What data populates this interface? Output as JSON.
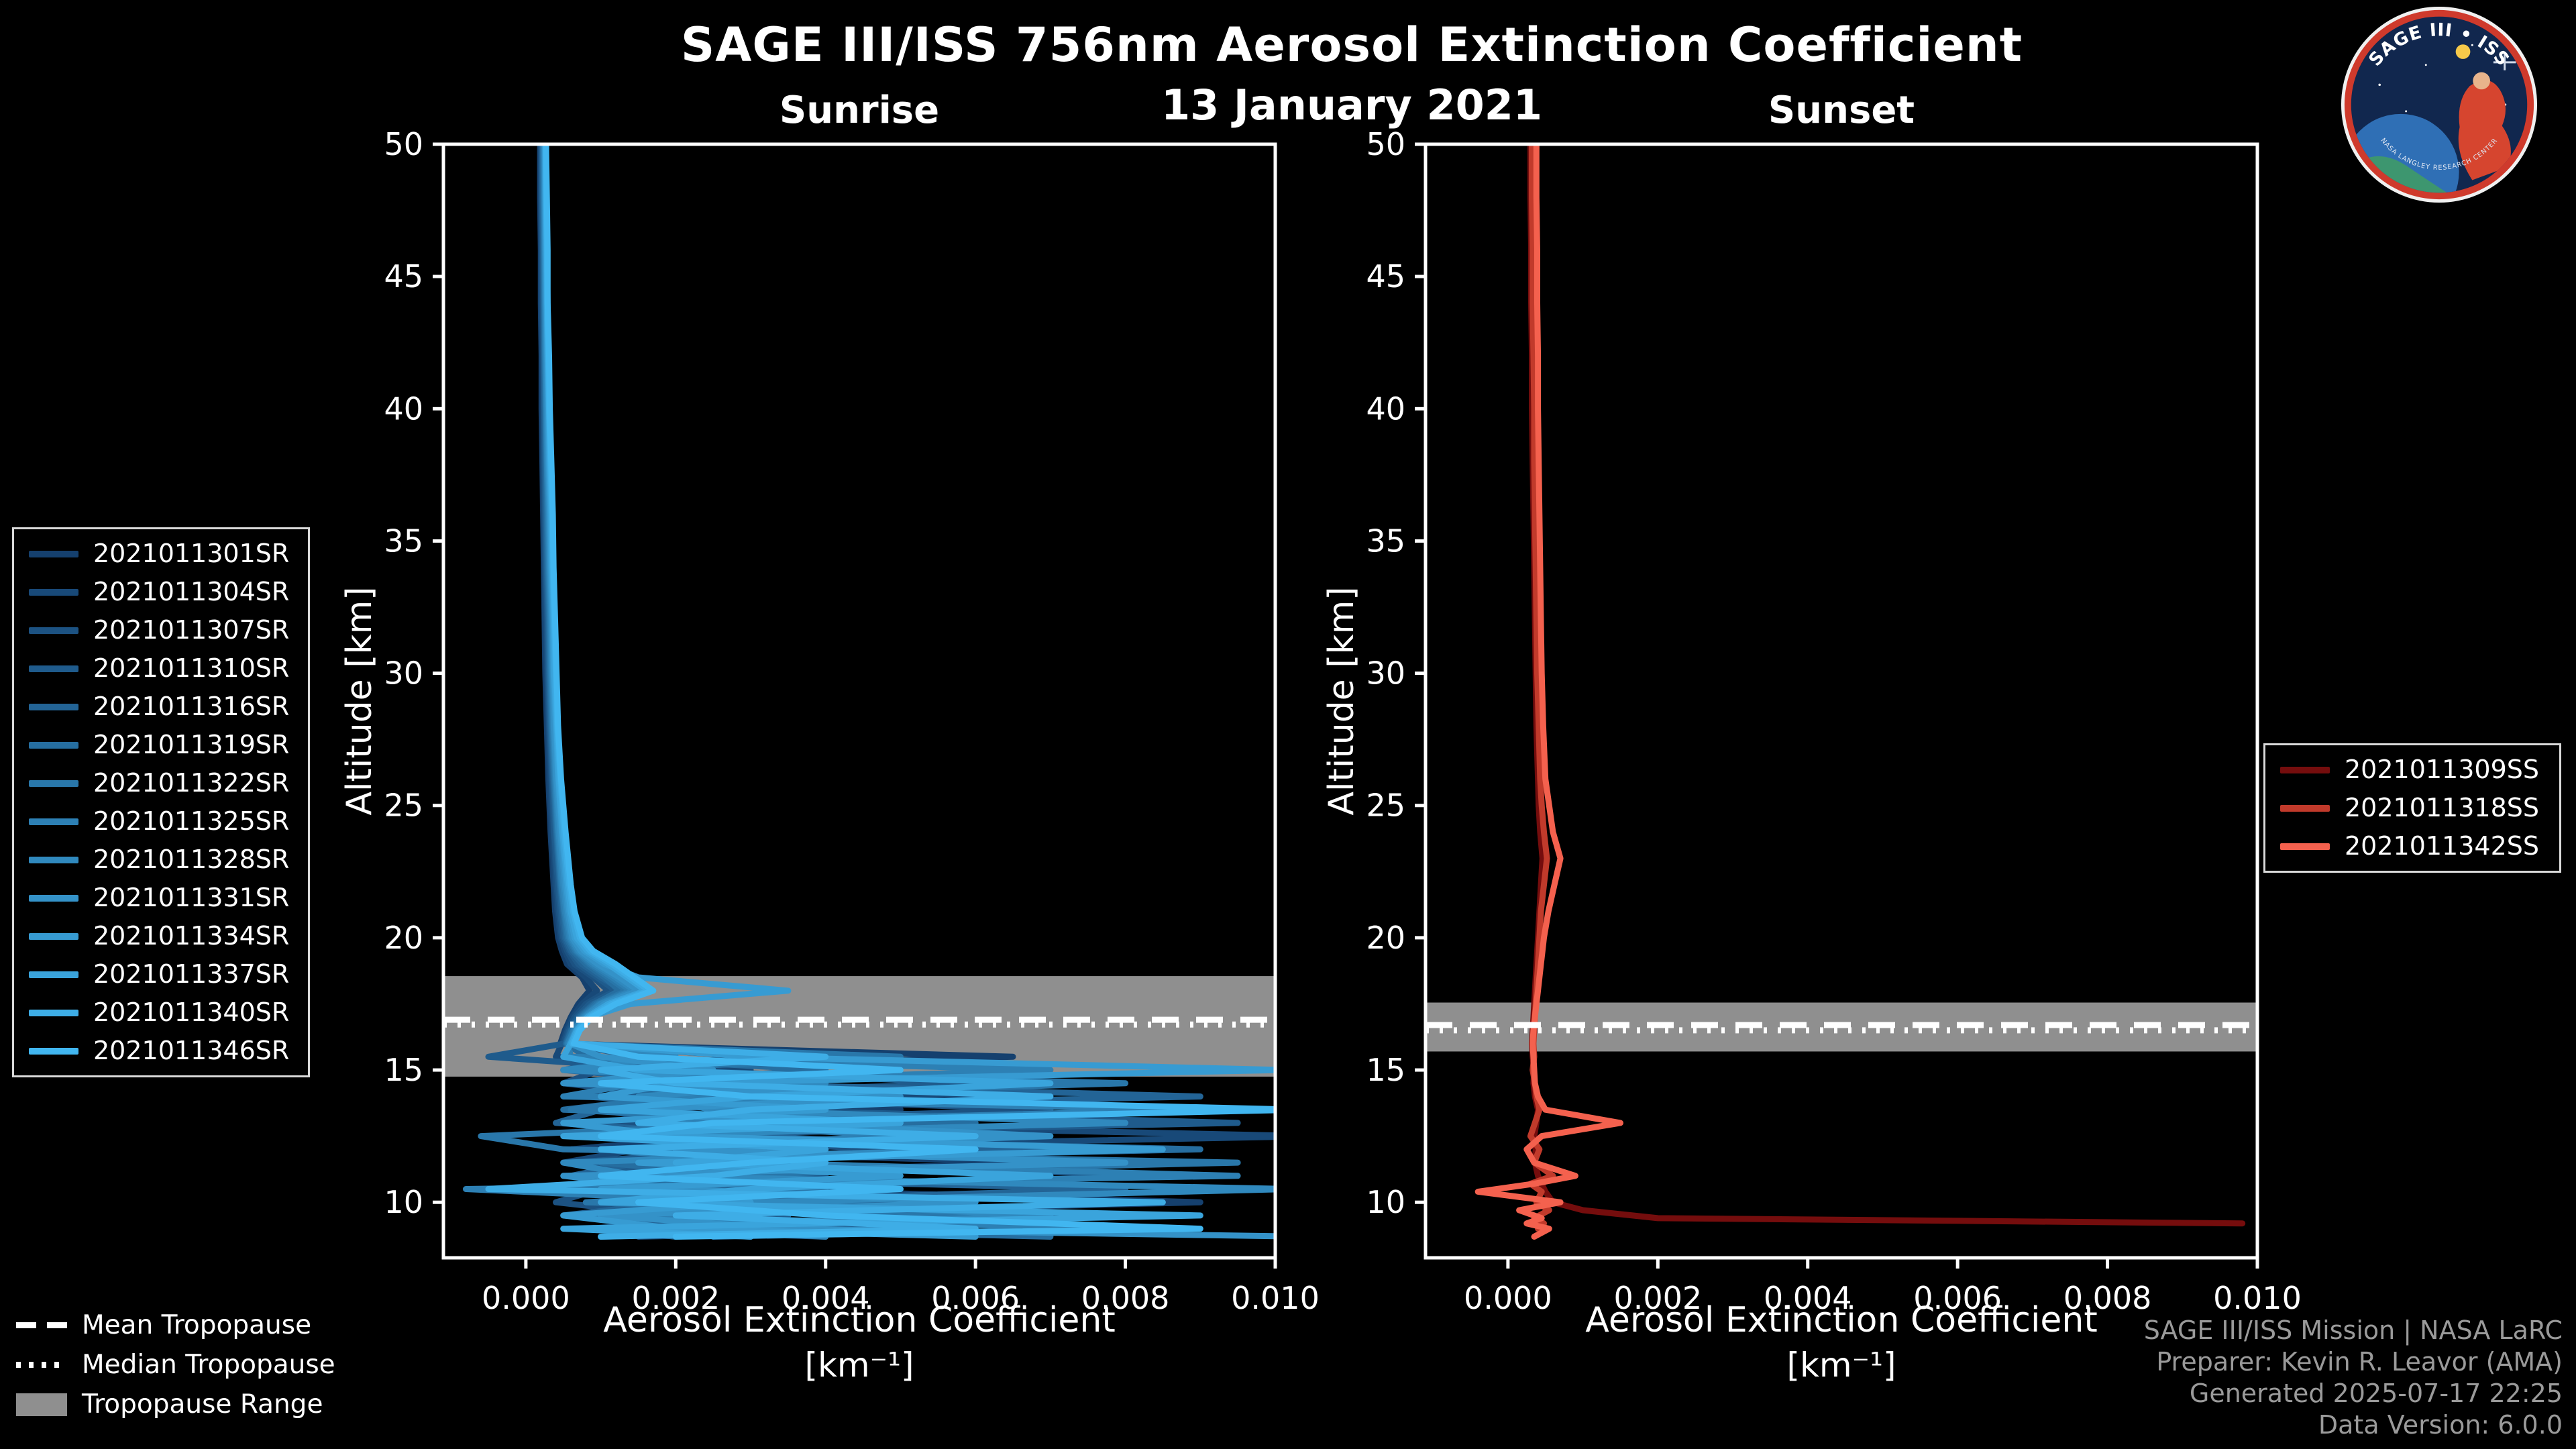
{
  "title": "SAGE III/ISS 756nm Aerosol Extinction Coefficient",
  "date": "13 January 2021",
  "logo": {
    "title": "SAGE III • ISS",
    "ring_text": "NASA LANGLEY RESEARCH CENTER"
  },
  "colors": {
    "background": "#000000",
    "text": "#ffffff",
    "axis": "#ffffff",
    "tropopause_band": "#8f8f8f",
    "tropopause_line": "#ffffff",
    "credit_text": "#9a9a9a",
    "legend_border": "#d9d9d9"
  },
  "tropopause_legend": {
    "mean": "Mean Tropopause",
    "median": "Median Tropopause",
    "range": "Tropopause Range"
  },
  "credit": {
    "lines": [
      "SAGE III/ISS Mission | NASA LaRC",
      "Preparer: Kevin R. Leavor (AMA)",
      "Generated 2025-07-17 22:25",
      "Data Version: 6.0.0"
    ]
  },
  "chart_data": [
    {
      "type": "line",
      "title": "Sunrise",
      "xlabel": "Aerosol Extinction Coefficient",
      "xlabel_units": "[km⁻¹]",
      "ylabel": "Altitude [km]",
      "xlim": [
        -0.0011,
        0.01
      ],
      "ylim": [
        7.9,
        50
      ],
      "xticks": [
        0,
        0.002,
        0.004,
        0.006,
        0.008,
        0.01
      ],
      "xtick_labels": [
        "0.000",
        "0.002",
        "0.004",
        "0.006",
        "0.008",
        "0.010"
      ],
      "yticks": [
        10,
        15,
        20,
        25,
        30,
        35,
        40,
        45,
        50
      ],
      "grid": false,
      "legend_position": "center left",
      "tropopause": {
        "mean": 16.9,
        "median": 16.72,
        "range": [
          14.75,
          18.55
        ]
      },
      "alt_grid": [
        50,
        48,
        46,
        44,
        42,
        40,
        38,
        36,
        34,
        32,
        30,
        28,
        26,
        24,
        22,
        21,
        20,
        19.5,
        19,
        18.5,
        18,
        17.5,
        17,
        16.5,
        16,
        15.5,
        15,
        14.5,
        14,
        13.5,
        13,
        12.5,
        12,
        11.5,
        11,
        10.5,
        10,
        9.5,
        9,
        8.7
      ],
      "series": [
        {
          "name": "2021011301SR",
          "color": "#15406e",
          "ext": [
            0.00019,
            0.00019,
            0.0002,
            0.0002,
            0.00021,
            0.00021,
            0.00022,
            0.00023,
            0.00024,
            0.00025,
            0.00026,
            0.00028,
            0.0003,
            0.00033,
            0.00037,
            0.00039,
            0.00043,
            0.00048,
            0.00055,
            0.00075,
            0.00085,
            0.0007,
            0.0006,
            0.00052,
            0.00046,
            0.0065,
            0.0006,
            0.003,
            0.001,
            0.005,
            0.0008,
            0.0025,
            0.0006,
            0.007,
            0.001,
            0.003,
            0.009,
            0.002,
            0.005,
            0.001
          ]
        },
        {
          "name": "2021011304SR",
          "color": "#184978",
          "ext": [
            0.0002,
            0.0002,
            0.00021,
            0.00021,
            0.00022,
            0.00023,
            0.00023,
            0.00024,
            0.00025,
            0.00026,
            0.00028,
            0.0003,
            0.00032,
            0.00035,
            0.00039,
            0.00042,
            0.00046,
            0.00052,
            0.0006,
            0.0008,
            0.00095,
            0.00075,
            0.00062,
            0.00054,
            0.00048,
            0.0004,
            0.003,
            0.0008,
            0.006,
            0.001,
            0.002,
            0.0105,
            0.0015,
            0.0005,
            0.004,
            0.001,
            0.0025,
            0.008,
            0.0012,
            0.003
          ]
        },
        {
          "name": "2021011307SR",
          "color": "#1c5282",
          "ext": [
            0.00021,
            0.00021,
            0.00022,
            0.00022,
            0.00023,
            0.00024,
            0.00024,
            0.00025,
            0.00026,
            0.00028,
            0.00029,
            0.00031,
            0.00034,
            0.00037,
            0.00041,
            0.00044,
            0.00048,
            0.00055,
            0.00065,
            0.0009,
            0.0011,
            0.0008,
            0.00065,
            0.00056,
            0.0005,
            0.003,
            0.001,
            0.0005,
            0.002,
            0.007,
            0.0012,
            0.0006,
            0.005,
            0.002,
            0.009,
            0.001,
            0.0004,
            0.002,
            0.006,
            0.0015
          ]
        },
        {
          "name": "2021011310SR",
          "color": "#1f5b8c",
          "ext": [
            0.00021,
            0.00022,
            0.00022,
            0.00023,
            0.00024,
            0.00024,
            0.00025,
            0.00026,
            0.00027,
            0.00029,
            0.0003,
            0.00032,
            0.00035,
            0.00038,
            0.00043,
            0.00046,
            0.0005,
            0.00058,
            0.0007,
            0.00095,
            0.0012,
            0.00085,
            0.00068,
            0.00058,
            0.00052,
            -0.0005,
            0.002,
            0.006,
            0.0008,
            0.003,
            0.0095,
            0.001,
            0.003,
            0.0006,
            0.002,
            0.005,
            0.001,
            0.0035,
            0.0008,
            0.004
          ]
        },
        {
          "name": "2021011316SR",
          "color": "#236496",
          "ext": [
            0.00022,
            0.00022,
            0.00023,
            0.00024,
            0.00024,
            0.00025,
            0.00026,
            0.00027,
            0.00028,
            0.0003,
            0.00031,
            0.00033,
            0.00036,
            0.0004,
            0.00045,
            0.00048,
            0.00052,
            0.0006,
            0.00075,
            0.001,
            0.0013,
            0.0009,
            0.0007,
            0.0006,
            0.00053,
            0.0015,
            0.0005,
            0.0025,
            0.009,
            0.001,
            0.0004,
            0.003,
            0.007,
            0.0015,
            0.0006,
            0.008,
            0.002,
            0.0005,
            0.003,
            0.001
          ]
        },
        {
          "name": "2021011319SR",
          "color": "#266ea0",
          "ext": [
            0.00023,
            0.00023,
            0.00024,
            0.00024,
            0.00025,
            0.00026,
            0.00027,
            0.00028,
            0.00029,
            0.00031,
            0.00032,
            0.00034,
            0.00037,
            0.00041,
            0.00046,
            0.0005,
            0.00054,
            0.00063,
            0.0008,
            0.00105,
            0.00125,
            0.00092,
            0.00072,
            0.00061,
            0.00054,
            0.0008,
            0.004,
            0.001,
            0.002,
            0.0005,
            0.006,
            0.0015,
            0.009,
            0.001,
            0.003,
            0.0006,
            0.005,
            0.0015,
            0.0025,
            0.007
          ]
        },
        {
          "name": "2021011322SR",
          "color": "#2977aa",
          "ext": [
            0.00023,
            0.00024,
            0.00024,
            0.00025,
            0.00026,
            0.00027,
            0.00028,
            0.00029,
            0.0003,
            0.00032,
            0.00033,
            0.00035,
            0.00038,
            0.00042,
            0.00047,
            0.00051,
            0.00056,
            0.00066,
            0.00085,
            0.0011,
            0.00135,
            0.00095,
            0.00074,
            0.00063,
            0.00055,
            0.005,
            0.001,
            0.008,
            0.002,
            0.0006,
            0.0035,
            -0.0006,
            0.0005,
            0.0095,
            0.002,
            0.004,
            0.0008,
            0.006,
            0.001,
            0.002
          ]
        },
        {
          "name": "2021011325SR",
          "color": "#2d80b4",
          "ext": [
            0.00024,
            0.00024,
            0.00025,
            0.00026,
            0.00026,
            0.00027,
            0.00028,
            0.0003,
            0.00031,
            0.00033,
            0.00034,
            0.00036,
            0.00039,
            0.00043,
            0.00048,
            0.00052,
            0.00058,
            0.00068,
            0.00088,
            0.00115,
            0.0014,
            0.00098,
            0.00076,
            0.00064,
            0.00056,
            0.0006,
            0.007,
            0.0015,
            0.0005,
            0.009,
            0.002,
            0.005,
            0.001,
            0.003,
            0.0095,
            -0.0008,
            0.003,
            0.001,
            0.008,
            0.0025
          ]
        },
        {
          "name": "2021011328SR",
          "color": "#3089be",
          "ext": [
            0.00025,
            0.00025,
            0.00026,
            0.00026,
            0.00027,
            0.00028,
            0.00029,
            0.00031,
            0.00032,
            0.00034,
            0.00035,
            0.00037,
            0.0004,
            0.00044,
            0.0005,
            0.00054,
            0.0006,
            0.0007,
            0.00092,
            0.0012,
            0.00145,
            0.001,
            0.00078,
            0.00066,
            0.00058,
            0.002,
            0.0005,
            0.004,
            0.0015,
            0.0025,
            0.008,
            0.001,
            0.006,
            0.0005,
            0.0015,
            0.0102,
            0.003,
            0.007,
            0.002,
            0.004
          ]
        },
        {
          "name": "2021011331SR",
          "color": "#3492c8",
          "ext": [
            0.00025,
            0.00026,
            0.00026,
            0.00027,
            0.00028,
            0.00029,
            0.0003,
            0.00032,
            0.00033,
            0.00035,
            0.00036,
            0.00038,
            0.00041,
            0.00046,
            0.00052,
            0.00056,
            0.00062,
            0.00073,
            0.00096,
            0.00125,
            0.0015,
            0.00105,
            0.0008,
            0.00067,
            0.00059,
            0.001,
            0.0025,
            0.0005,
            0.005,
            0.0015,
            0.003,
            0.007,
            0.002,
            0.008,
            0.0005,
            0.002,
            0.006,
            0.001,
            0.0035,
            0.0104
          ]
        },
        {
          "name": "2021011334SR",
          "color": "#379bd2",
          "ext": [
            0.00026,
            0.00026,
            0.00027,
            0.00028,
            0.00029,
            0.0003,
            0.00031,
            0.00033,
            0.00034,
            0.00036,
            0.00037,
            0.0004,
            0.00043,
            0.00048,
            0.00054,
            0.00058,
            0.00065,
            0.00078,
            0.00105,
            0.0015,
            0.0035,
            0.0014,
            0.00085,
            0.0007,
            0.0006,
            0.003,
            0.0101,
            0.002,
            0.001,
            0.004,
            0.0005,
            0.002,
            0.0085,
            0.0015,
            0.005,
            0.001,
            0.003,
            0.0005,
            0.002,
            0.006
          ]
        },
        {
          "name": "2021011337SR",
          "color": "#3aa4dc",
          "ext": [
            0.00026,
            0.00027,
            0.00028,
            0.00028,
            0.00029,
            0.00031,
            0.00032,
            0.00034,
            0.00035,
            0.00037,
            0.00038,
            0.00041,
            0.00044,
            0.00049,
            0.00056,
            0.0006,
            0.00068,
            0.00082,
            0.0011,
            0.00135,
            0.0016,
            0.0011,
            0.00082,
            0.00068,
            0.0006,
            0.0005,
            0.0015,
            0.007,
            0.003,
            0.001,
            0.005,
            0.0005,
            0.004,
            0.002,
            0.007,
            0.003,
            0.001,
            0.009,
            0.0005,
            0.003
          ]
        },
        {
          "name": "2021011340SR",
          "color": "#3eade6",
          "ext": [
            0.00027,
            0.00027,
            0.00028,
            0.00029,
            0.0003,
            0.00031,
            0.00033,
            0.00035,
            0.00036,
            0.00038,
            0.0004,
            0.00042,
            0.00046,
            0.00051,
            0.00058,
            0.00063,
            0.00072,
            0.00086,
            0.00115,
            0.0014,
            0.00165,
            0.00115,
            0.00085,
            0.0007,
            0.00062,
            0.004,
            0.001,
            0.002,
            0.007,
            0.003,
            0.0015,
            0.006,
            0.001,
            0.004,
            0.0025,
            -0.0005,
            0.0085,
            0.002,
            0.006,
            0.001
          ]
        },
        {
          "name": "2021011346SR",
          "color": "#41b6f0",
          "ext": [
            0.00027,
            0.00028,
            0.00029,
            0.00029,
            0.00031,
            0.00032,
            0.00034,
            0.00036,
            0.00037,
            0.00039,
            0.00041,
            0.00043,
            0.00047,
            0.00053,
            0.0006,
            0.00065,
            0.00075,
            0.0009,
            0.0012,
            0.00145,
            0.0017,
            0.0012,
            0.00088,
            0.00072,
            0.00064,
            0.0015,
            0.005,
            0.001,
            0.003,
            0.0103,
            0.0025,
            0.001,
            0.006,
            0.003,
            0.001,
            0.005,
            0.0015,
            0.004,
            0.009,
            0.002
          ]
        }
      ]
    },
    {
      "type": "line",
      "title": "Sunset",
      "xlabel": "Aerosol Extinction Coefficient",
      "xlabel_units": "[km⁻¹]",
      "ylabel": "Altitude [km]",
      "xlim": [
        -0.0011,
        0.01
      ],
      "ylim": [
        7.9,
        50
      ],
      "xticks": [
        0,
        0.002,
        0.004,
        0.006,
        0.008,
        0.01
      ],
      "xtick_labels": [
        "0.000",
        "0.002",
        "0.004",
        "0.006",
        "0.008",
        "0.010"
      ],
      "yticks": [
        10,
        15,
        20,
        25,
        30,
        35,
        40,
        45,
        50
      ],
      "grid": false,
      "legend_position": "center right",
      "tropopause": {
        "mean": 16.7,
        "median": 16.5,
        "range": [
          15.7,
          17.55
        ]
      },
      "alt_grid": [
        50,
        48,
        46,
        44,
        42,
        40,
        38,
        36,
        34,
        32,
        30,
        28,
        26,
        25,
        24,
        23,
        22,
        21,
        20,
        19.5,
        19,
        18.5,
        18,
        17.5,
        17,
        16.5,
        16,
        15.5,
        15,
        14.5,
        14,
        13.5,
        13,
        12.5,
        12,
        11.5,
        11,
        10.7,
        10.4,
        10,
        9.7,
        9.4,
        9.2,
        9,
        8.7
      ],
      "series": [
        {
          "name": "2021011309SS",
          "color": "#750d0d",
          "ext": [
            0.0003,
            0.0003,
            0.00031,
            0.00031,
            0.00032,
            0.00032,
            0.00033,
            0.00034,
            0.00035,
            0.00036,
            0.00037,
            0.00038,
            0.0004,
            0.00041,
            0.00043,
            0.00046,
            0.00044,
            0.00042,
            0.0004,
            0.00039,
            0.00038,
            0.00037,
            0.00036,
            0.00035,
            0.00034,
            0.00033,
            0.00032,
            0.00033,
            0.00035,
            0.00034,
            0.00036,
            0.0004,
            0.00038,
            0.00035,
            0.00037,
            0.00036,
            0.0004,
            0.00045,
            0.0005,
            0.0006,
            0.001,
            0.002,
            0.0098,
            null,
            null
          ]
        },
        {
          "name": "2021011318SS",
          "color": "#c13a2b",
          "ext": [
            0.00032,
            0.00032,
            0.00033,
            0.00033,
            0.00034,
            0.00035,
            0.00035,
            0.00036,
            0.00037,
            0.00038,
            0.00039,
            0.00041,
            0.00043,
            0.00045,
            0.00048,
            0.00052,
            0.00048,
            0.00044,
            0.00042,
            0.00041,
            0.0004,
            0.00039,
            0.00038,
            0.00037,
            0.00036,
            0.00035,
            0.00034,
            0.00035,
            0.00033,
            0.00036,
            0.00038,
            0.00042,
            0.00036,
            0.0003,
            0.00042,
            0.00035,
            0.0006,
            0.0003,
            0.00045,
            0.00038,
            0.00055,
            0.00035,
            0.00048,
            0.0004,
            null
          ]
        },
        {
          "name": "2021011342SS",
          "color": "#f4614e",
          "ext": [
            0.00038,
            0.00038,
            0.00039,
            0.00039,
            0.0004,
            0.0004,
            0.00041,
            0.00042,
            0.00043,
            0.00044,
            0.00045,
            0.00047,
            0.0005,
            0.00055,
            0.0006,
            0.0007,
            0.00062,
            0.00054,
            0.00048,
            0.00046,
            0.00044,
            0.00042,
            0.0004,
            0.00038,
            0.00036,
            0.00034,
            0.00033,
            0.00034,
            0.00035,
            0.00036,
            0.0004,
            0.0005,
            0.0015,
            0.00045,
            0.00025,
            0.00035,
            0.0009,
            0.00035,
            -0.0004,
            0.0007,
            0.00015,
            0.00045,
            0.00025,
            0.00055,
            0.00035
          ]
        }
      ]
    }
  ]
}
